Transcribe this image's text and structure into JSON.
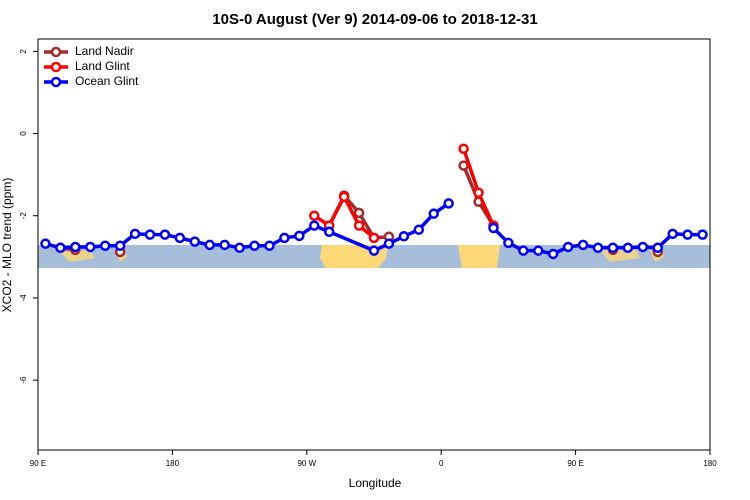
{
  "chart_data": {
    "type": "line",
    "title": "10S-0 August (Ver 9)   2014-09-06 to 2018-12-31",
    "xlabel": "Longitude",
    "ylabel": "XCO2 - MLO trend (ppm)",
    "xlim": [
      90,
      540
    ],
    "ylim": [
      -7.7,
      2.3
    ],
    "xticks": [
      {
        "value": 90,
        "label": "90 E"
      },
      {
        "value": 180,
        "label": "180"
      },
      {
        "value": 270,
        "label": "90 W"
      },
      {
        "value": 360,
        "label": "0"
      },
      {
        "value": 450,
        "label": "90 E"
      },
      {
        "value": 540,
        "label": "180"
      }
    ],
    "yticks": [
      2,
      0,
      -2,
      -4,
      -6
    ],
    "legend": "top-left",
    "series": [
      {
        "name": "Land Nadir",
        "color": "#a52a2a",
        "x": [
          105,
          115,
          null,
          145,
          null,
          285,
          295,
          305,
          315,
          325,
          null,
          375,
          385,
          395,
          null,
          475,
          null,
          505
        ],
        "values": [
          -2.78,
          -2.83,
          null,
          -2.88,
          null,
          -2.24,
          -1.51,
          -1.93,
          -2.54,
          -2.51,
          null,
          -0.78,
          -1.66,
          -2.24,
          null,
          -2.83,
          null,
          -2.88
        ]
      },
      {
        "name": "Land Glint",
        "color": "#ff0000",
        "x": [
          275,
          285,
          295,
          305,
          315,
          null,
          375,
          385,
          395
        ],
        "values": [
          -2.0,
          -2.24,
          -1.54,
          -2.24,
          -2.54,
          null,
          -0.37,
          -1.44,
          -2.24
        ]
      },
      {
        "name": "Ocean Glint",
        "color": "#0000ff",
        "x": [
          95,
          105,
          115,
          125,
          135,
          145,
          155,
          165,
          175,
          185,
          195,
          205,
          215,
          225,
          235,
          245,
          255,
          265,
          275,
          285,
          315,
          325,
          335,
          345,
          355,
          365,
          null,
          395,
          405,
          415,
          425,
          435,
          445,
          455,
          465,
          475,
          485,
          495,
          505,
          515,
          525,
          535
        ],
        "values": [
          -2.68,
          -2.78,
          -2.76,
          -2.76,
          -2.73,
          -2.73,
          -2.44,
          -2.46,
          -2.46,
          -2.54,
          -2.63,
          -2.71,
          -2.71,
          -2.78,
          -2.73,
          -2.73,
          -2.54,
          -2.49,
          -2.24,
          -2.39,
          -2.85,
          -2.68,
          -2.5,
          -2.34,
          -1.95,
          -1.7,
          null,
          -2.3,
          -2.66,
          -2.85,
          -2.85,
          -2.93,
          -2.76,
          -2.71,
          -2.78,
          -2.78,
          -2.78,
          -2.76,
          -2.78,
          -2.44,
          -2.46,
          -2.46
        ]
      }
    ]
  }
}
